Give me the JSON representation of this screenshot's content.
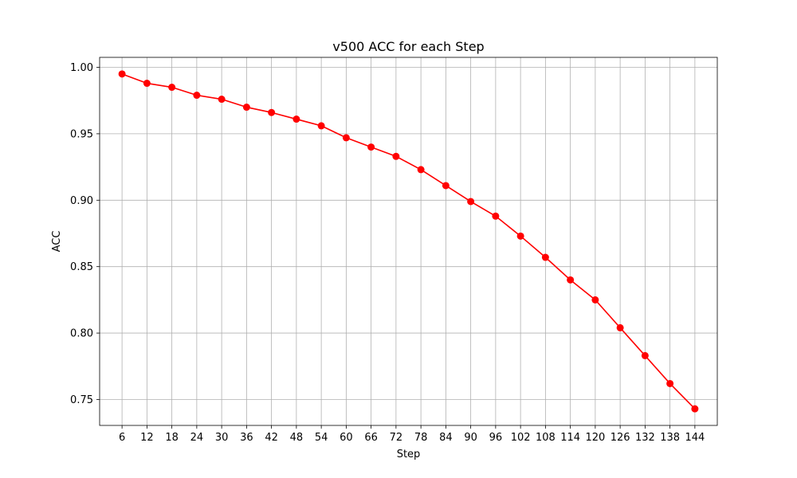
{
  "chart_data": {
    "type": "line",
    "title": "v500 ACC for each Step",
    "xlabel": "Step",
    "ylabel": "ACC",
    "x": [
      6,
      12,
      18,
      24,
      30,
      36,
      42,
      48,
      54,
      60,
      66,
      72,
      78,
      84,
      90,
      96,
      102,
      108,
      114,
      120,
      126,
      132,
      138,
      144
    ],
    "series": [
      {
        "values": [
          0.995,
          0.988,
          0.985,
          0.979,
          0.976,
          0.97,
          0.966,
          0.961,
          0.956,
          0.947,
          0.94,
          0.933,
          0.923,
          0.911,
          0.899,
          0.888,
          0.873,
          0.857,
          0.84,
          0.825,
          0.804,
          0.783,
          0.762,
          0.743
        ],
        "color": "#ff0000"
      }
    ],
    "xlim": [
      0.6,
      149.4
    ],
    "ylim": [
      0.7305,
      1.0075
    ],
    "yticks": [
      0.75,
      0.8,
      0.85,
      0.9,
      0.95,
      1.0
    ],
    "ytick_labels": [
      "0.75",
      "0.80",
      "0.85",
      "0.90",
      "0.95",
      "1.00"
    ],
    "grid": true,
    "legend": "none",
    "line_color": "#ff0000",
    "marker_color": "#ff0000"
  }
}
